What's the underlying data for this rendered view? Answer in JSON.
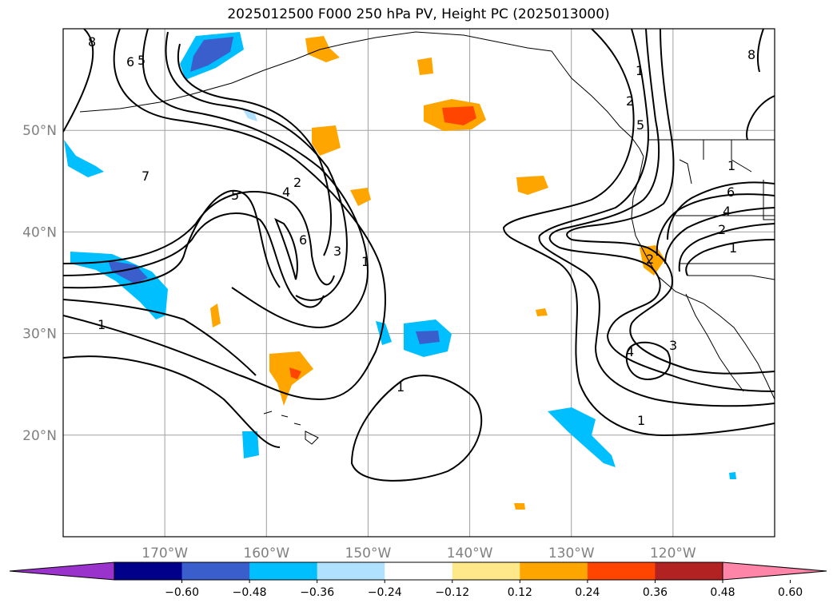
{
  "title": "2025012500 F000 250 hPa PV, Height PC (2025013000)",
  "map": {
    "lon_range": [
      -180,
      -110
    ],
    "lat_range": [
      10,
      60
    ],
    "lon_ticks": [
      {
        "value": -170,
        "label": "170°W"
      },
      {
        "value": -160,
        "label": "160°W"
      },
      {
        "value": -150,
        "label": "150°W"
      },
      {
        "value": -140,
        "label": "140°W"
      },
      {
        "value": -130,
        "label": "130°W"
      },
      {
        "value": -120,
        "label": "120°W"
      }
    ],
    "lat_ticks": [
      {
        "value": 20,
        "label": "20°N"
      },
      {
        "value": 30,
        "label": "30°N"
      },
      {
        "value": 40,
        "label": "40°N"
      },
      {
        "value": 50,
        "label": "50°N"
      }
    ],
    "grid": true,
    "contour_labels": [
      "8",
      "6",
      "5",
      "7",
      "5",
      "2",
      "4",
      "6",
      "3",
      "1",
      "1",
      "1",
      "1",
      "8",
      "2",
      "5",
      "1",
      "6",
      "4",
      "2",
      "1",
      "2",
      "4",
      "3",
      "1"
    ]
  },
  "colorbar": {
    "ticks": [
      "−0.60",
      "−0.48",
      "−0.36",
      "−0.24",
      "−0.12",
      "0.12",
      "0.24",
      "0.36",
      "0.48",
      "0.60"
    ],
    "colors": [
      "#9933cc",
      "#00008b",
      "#3a5fcd",
      "#00bfff",
      "#b0e2ff",
      "#ffffff",
      "#ffe88a",
      "#ffa500",
      "#ff4500",
      "#b22222",
      "#ff85a8"
    ]
  }
}
